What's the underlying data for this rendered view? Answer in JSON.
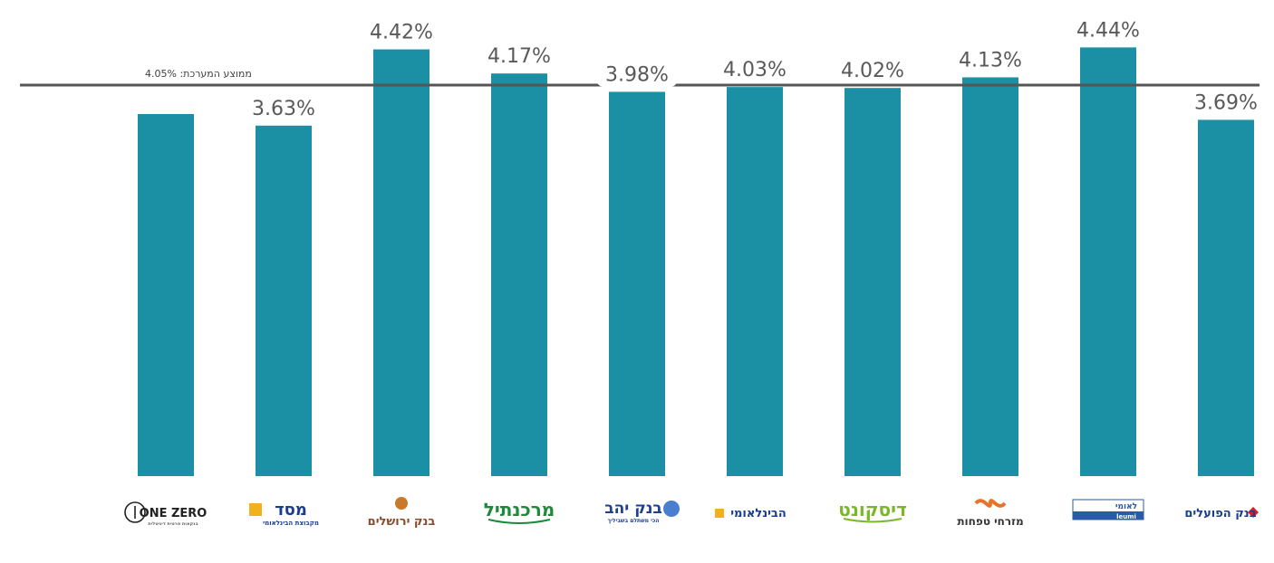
{
  "chart_data": {
    "type": "bar",
    "categories": [
      "ONE ZERO",
      "מסד",
      "בנק ירושלים",
      "מרכנתיל",
      "בנק יהב",
      "הבינלאומי",
      "דיסקונט",
      "מזרחי טפחות",
      "לאומי",
      "בנק הפועלים"
    ],
    "values": [
      3.75,
      3.63,
      4.42,
      4.17,
      3.98,
      4.03,
      4.02,
      4.13,
      4.44,
      3.69
    ],
    "data_labels": [
      "",
      "3.63%",
      "4.42%",
      "4.17%",
      "3.98%",
      "4.03%",
      "4.02%",
      "4.13%",
      "4.44%",
      "3.69%"
    ],
    "bar_color": "#1b8fa3",
    "ylim": [
      0,
      4.8
    ],
    "grid": false,
    "legend": "none",
    "reference_line": {
      "value": 4.05,
      "label": "ממוצע המערכת: 4.05%",
      "color": "#555555"
    }
  },
  "logos": [
    {
      "name": "one-zero",
      "main": "ONE ZERO",
      "sub": "בנקאות פרטית דיגיטלית",
      "color": "#222222"
    },
    {
      "name": "massad",
      "main": "מסד",
      "sub": "מקבוצת הבינלאומי",
      "color": "#1a3d8f",
      "accent": "#f2b01e"
    },
    {
      "name": "jerusalem",
      "main": "בנק ירושלים",
      "color": "#8a4b2a",
      "accent": "#c9792b"
    },
    {
      "name": "mercantile",
      "main": "מרכנתיל",
      "color": "#1d8a3a"
    },
    {
      "name": "yahav",
      "main": "בנק יהב",
      "sub": "הכי משתלם בשביליך",
      "color": "#1f3f8f"
    },
    {
      "name": "beinleumi",
      "main": "הבינלאומי",
      "color": "#1a3d8f",
      "accent": "#f2b01e"
    },
    {
      "name": "discount",
      "main": "דיסקונט",
      "color": "#7ab829"
    },
    {
      "name": "mizrahi",
      "main": "מזרחי טפחות",
      "color": "#333333",
      "accent": "#e8742a"
    },
    {
      "name": "leumi",
      "main": "לאומי",
      "sub": "leumi",
      "color": "#2a5ba8"
    },
    {
      "name": "hapoalim",
      "main": "בנק הפועלים",
      "color": "#1a3d8f",
      "accent": "#d0202e"
    }
  ]
}
